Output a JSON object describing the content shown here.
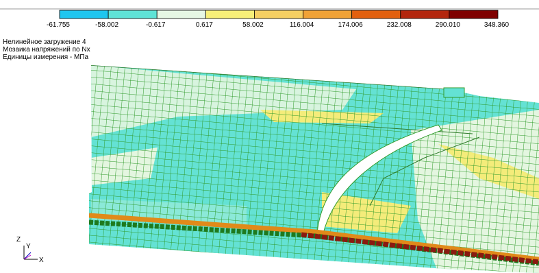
{
  "legend": {
    "ticks": [
      "-61.755",
      "-58.002",
      "-0.617",
      "0.617",
      "58.002",
      "116.004",
      "174.006",
      "232.008",
      "290.010",
      "348.360"
    ],
    "colors": [
      "#1ec6ef",
      "#5fe3d6",
      "#e6f7e4",
      "#f7ef78",
      "#f5cf62",
      "#f0a236",
      "#e2600f",
      "#b3260e",
      "#7f0000"
    ]
  },
  "info": [
    "Нелинейное загружение  4",
    "Мозаика напряжений по Nx",
    "Единицы измерения - МПа"
  ],
  "axes": {
    "z": "Z",
    "y": "Y",
    "x": "X"
  }
}
